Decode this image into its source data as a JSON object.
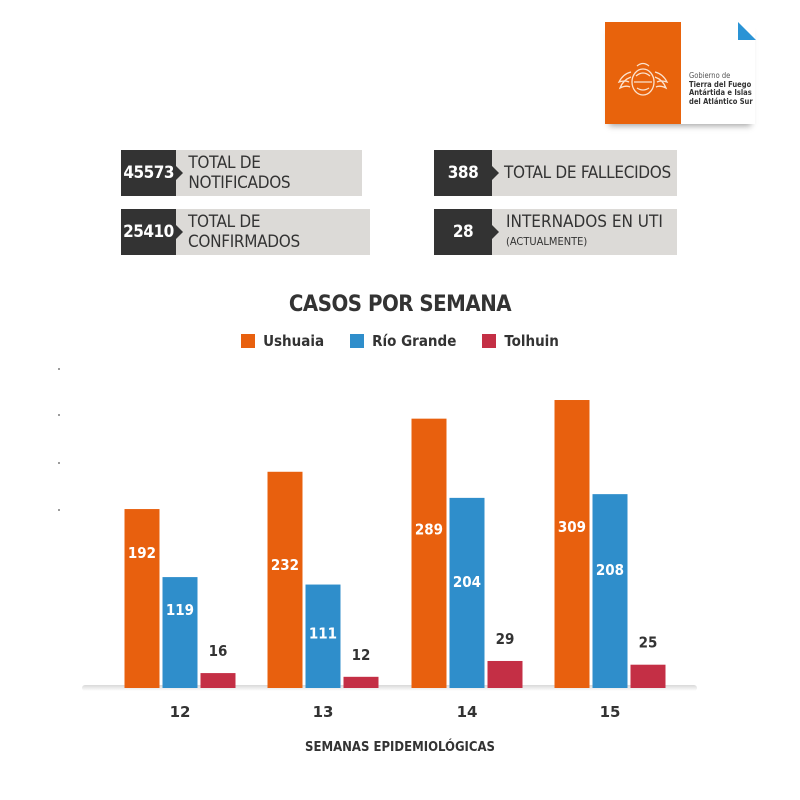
{
  "logo": {
    "line1": "Gobierno de",
    "line2": "Tierra del Fuego",
    "line3": "Antártida e Islas",
    "line4": "del Atlántico Sur",
    "brand_color": "#e8630c",
    "accent_color": "#2a93d5"
  },
  "stats": [
    {
      "value": "45573",
      "label": "TOTAL DE NOTIFICADOS"
    },
    {
      "value": "25410",
      "label": "TOTAL DE CONFIRMADOS"
    },
    {
      "value": "388",
      "label": "TOTAL DE FALLECIDOS"
    },
    {
      "value": "28",
      "label": "INTERNADOS EN UTI",
      "sublabel": "(ACTUALMENTE)"
    }
  ],
  "chart_data": {
    "type": "bar",
    "title": "CASOS POR SEMANA",
    "xlabel": "SEMANAS EPIDEMIOLÓGICAS",
    "ylabel": "",
    "categories": [
      "12",
      "13",
      "14",
      "15"
    ],
    "series": [
      {
        "name": "Ushuaia",
        "color": "#e8600e",
        "values": [
          192,
          232,
          289,
          309
        ]
      },
      {
        "name": "Río Grande",
        "color": "#2f8ecb",
        "values": [
          119,
          111,
          204,
          208
        ]
      },
      {
        "name": "Tolhuin",
        "color": "#c42f45",
        "values": [
          16,
          12,
          29,
          25
        ]
      }
    ],
    "ylim": [
      0,
      330
    ],
    "grid": false,
    "legend": "top-center",
    "data_labels": true
  }
}
